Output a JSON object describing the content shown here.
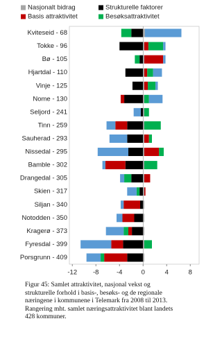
{
  "chart_data": {
    "type": "bar",
    "orientation": "horizontal",
    "stacked": true,
    "categories": [
      "Kviteseid - 68",
      "Tokke - 96",
      "Bø - 105",
      "Hjartdal - 110",
      "Vinje - 125",
      "Nome - 130",
      "Seljord - 241",
      "Tinn - 259",
      "Sauherad - 293",
      "Nissedal - 295",
      "Bamble - 302",
      "Drangedal - 305",
      "Skien - 317",
      "Siljan - 340",
      "Notodden - 350",
      "Kragerø - 373",
      "Fyresdal - 399",
      "Porsgrunn - 409"
    ],
    "series": [
      {
        "name": "Nasjonalt bidrag",
        "color": "#a6a6a6",
        "values": [
          0.3,
          0.2,
          0.2,
          0.2,
          0.2,
          0.2,
          0.2,
          0.2,
          0.2,
          0.2,
          0.2,
          0.2,
          0.2,
          0.2,
          0.2,
          0.2,
          0.2,
          0.2
        ]
      },
      {
        "name": "Strukturelle faktorer",
        "color": "#000000",
        "values": [
          -2,
          -4,
          -0.6,
          -3,
          -1.8,
          -3.2,
          -0.4,
          -2.7,
          -2.7,
          -2.5,
          -3,
          -2,
          -0.6,
          -0.5,
          -1.5,
          -1.9,
          -3.4,
          -2.7
        ]
      },
      {
        "name": "Basis attraktivitet",
        "color": "#c00000",
        "values": [
          0,
          0.7,
          3.2,
          0.5,
          0.6,
          -0.6,
          0,
          -2,
          0.8,
          2.5,
          -3.4,
          1,
          0.2,
          -2.8,
          -2,
          -0.6,
          -2,
          -3.9
        ]
      },
      {
        "name": "Besøksattraktivitet",
        "color": "#00b050",
        "values": [
          -1.7,
          2.5,
          -0.8,
          1,
          1.3,
          0.8,
          0.8,
          2.8,
          0.5,
          0.8,
          2.2,
          -1.2,
          -0.5,
          0,
          0,
          -0.8,
          1.3,
          -0.6
        ]
      },
      {
        "color": "#5b9bd5",
        "values": [
          6.2,
          0.4,
          0.4,
          1.5,
          0.4,
          2.3,
          -1.2,
          -1.5,
          -3,
          -5.2,
          -0.5,
          -0.7,
          -1.6,
          -0.5,
          -1,
          -3,
          -5.2,
          -2.4
        ]
      }
    ],
    "xlim": [
      -12.5,
      9.5
    ],
    "xticks": [
      -12,
      -8,
      -4,
      0,
      4,
      8
    ],
    "caption": [
      "Figur 45: Samlet attraktivitet, nasjonal vekst og",
      "strukturelle forhold i basis-, besøks- og de regionale",
      "næringene i kommunene i Telemark fra 2008 til 2013.",
      "Rangering mht. samlet næringsattraktivitet blant landets",
      "428 kommuner."
    ]
  }
}
